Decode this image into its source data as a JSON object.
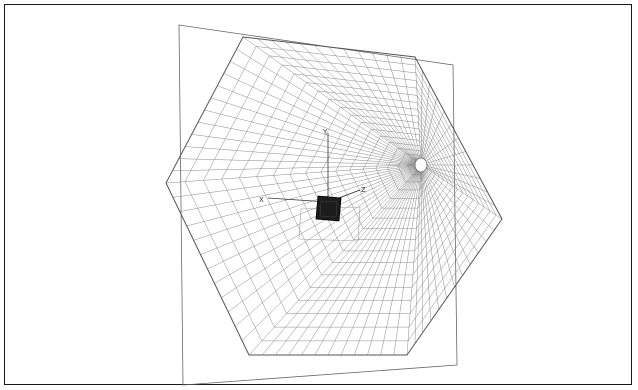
{
  "figure": {
    "axes": {
      "y_label": "Y",
      "x_label": "X",
      "z_label": "Z"
    },
    "colors": {
      "background": "#ffffff",
      "border": "#1a1a1a",
      "mesh": "#8a8a8a",
      "outline": "#555555",
      "specimen": "#1c1c1c"
    },
    "mesh_divisions": {
      "circumferential_per_sector": 12,
      "radial": 18
    },
    "sectors": 6
  }
}
